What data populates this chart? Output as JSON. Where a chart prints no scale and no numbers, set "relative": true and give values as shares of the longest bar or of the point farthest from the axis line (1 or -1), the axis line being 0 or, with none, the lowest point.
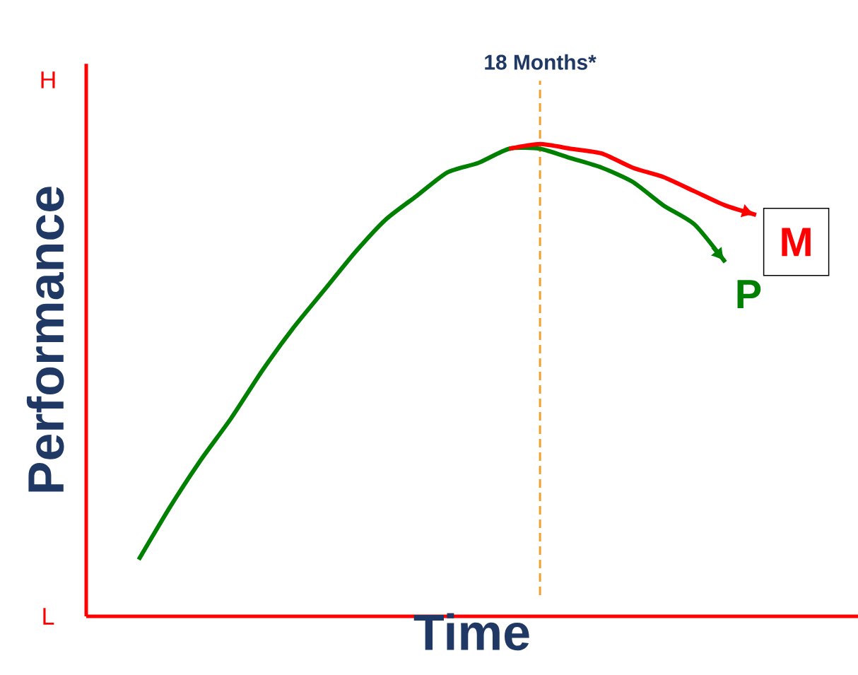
{
  "chart_data": {
    "type": "line",
    "xlabel": "Time",
    "ylabel": "Performance",
    "relative": true,
    "categories": [
      null,
      null,
      null,
      null,
      null,
      null,
      null,
      null,
      null,
      null,
      null,
      null,
      null,
      null,
      null,
      null,
      null,
      null,
      null,
      null,
      null
    ],
    "series": [
      {
        "name": "P",
        "color": "#008000",
        "values": [
          0.12,
          0.23,
          0.33,
          0.42,
          0.52,
          0.61,
          0.69,
          0.77,
          0.84,
          0.89,
          0.94,
          0.96,
          0.99,
          0.99,
          0.97,
          0.95,
          0.92,
          0.87,
          0.83,
          0.75,
          null
        ]
      },
      {
        "name": "M",
        "color": "#ff0000",
        "values": [
          null,
          null,
          null,
          null,
          null,
          null,
          null,
          null,
          null,
          null,
          null,
          null,
          0.99,
          1.0,
          0.99,
          0.98,
          0.95,
          0.93,
          0.9,
          0.87,
          0.85
        ]
      }
    ],
    "annotations": [
      "H",
      "L",
      "18 Months*"
    ],
    "line_style": "solid",
    "marker": "none"
  }
}
